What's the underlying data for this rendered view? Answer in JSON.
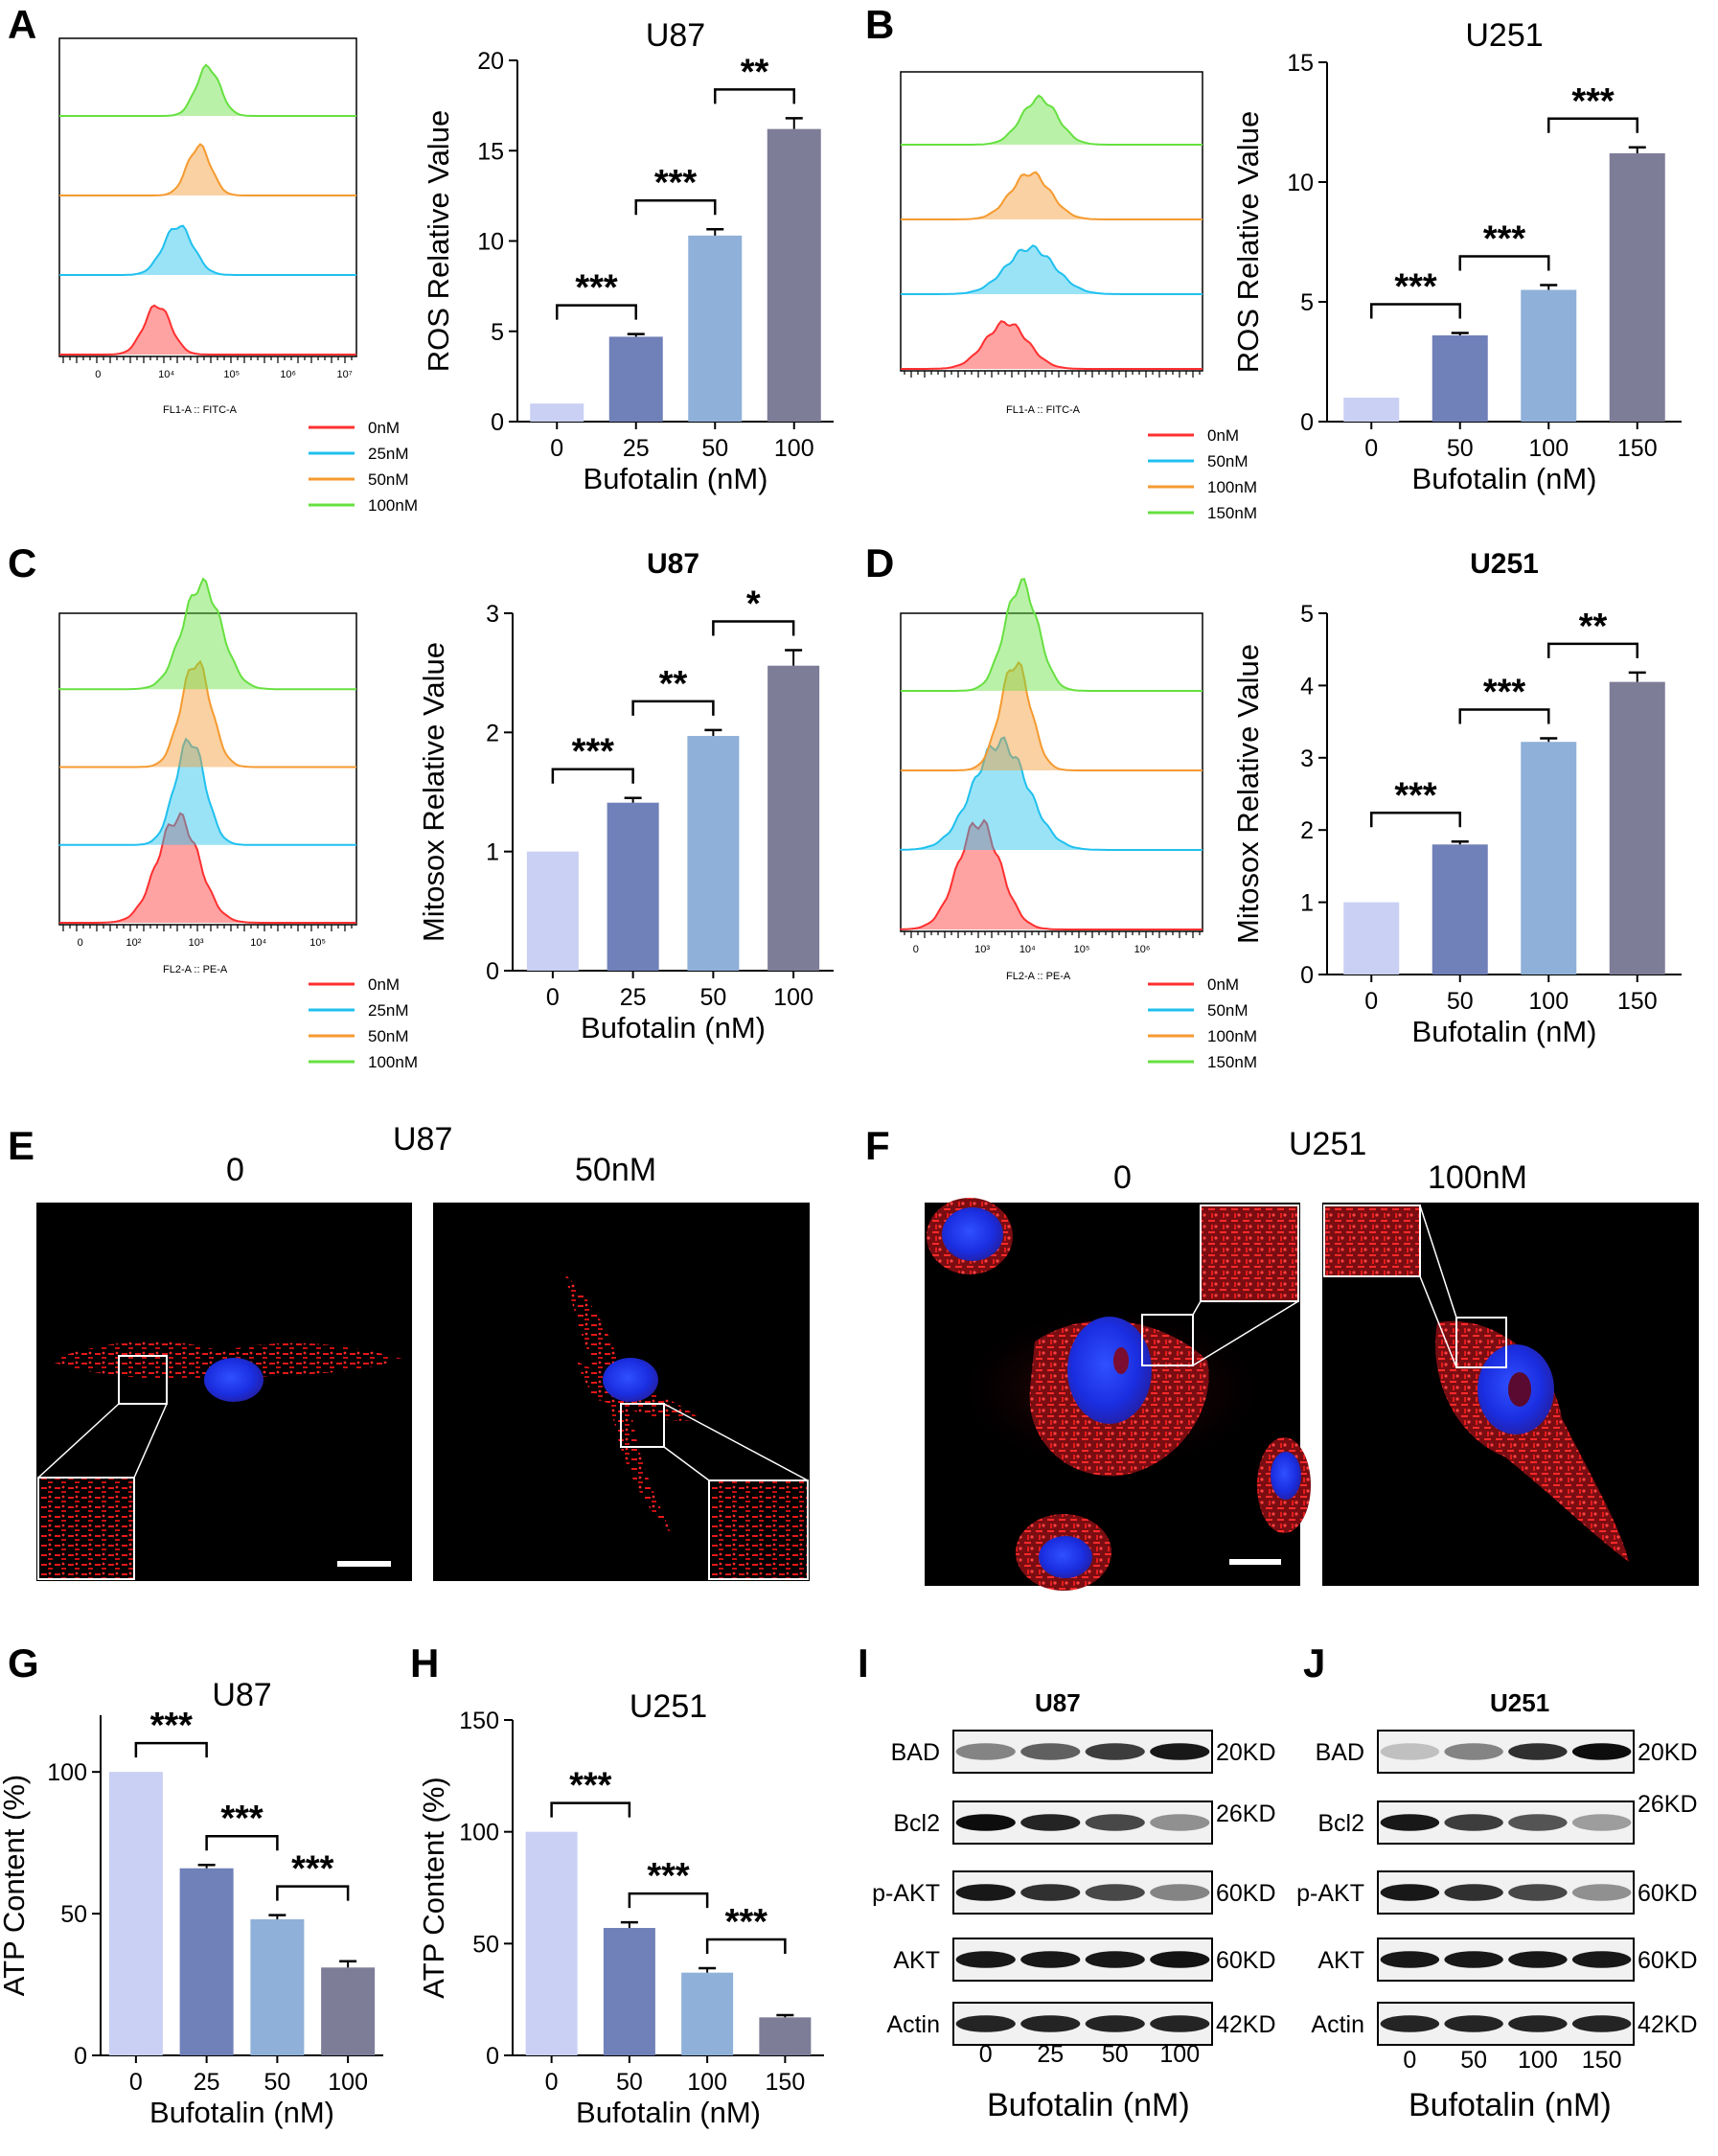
{
  "panels": {
    "A": {
      "label": "A",
      "title": "U87",
      "flow_axis": "FL1-A :: FITC-A",
      "legend": [
        "0nM",
        "25nM",
        "50nM",
        "100nM"
      ]
    },
    "B": {
      "label": "B",
      "title": "U251",
      "flow_axis": "FL1-A :: FITC-A",
      "legend": [
        "0nM",
        "50nM",
        "100nM",
        "150nM"
      ]
    },
    "C": {
      "label": "C",
      "title": "U87",
      "flow_axis": "FL2-A :: PE-A",
      "legend": [
        "0nM",
        "25nM",
        "50nM",
        "100nM"
      ]
    },
    "D": {
      "label": "D",
      "title": "U251",
      "flow_axis": "FL2-A :: PE-A",
      "legend": [
        "0nM",
        "50nM",
        "100nM",
        "150nM"
      ]
    },
    "E": {
      "label": "E",
      "cell": "U87",
      "cond_left": "0",
      "cond_right": "50nM"
    },
    "F": {
      "label": "F",
      "cell": "U251",
      "cond_left": "0",
      "cond_right": "100nM"
    },
    "G": {
      "label": "G",
      "title": "U87"
    },
    "H": {
      "label": "H",
      "title": "U251"
    },
    "I": {
      "label": "I",
      "title": "U87",
      "proteins": [
        "BAD",
        "Bcl2",
        "p-AKT",
        "AKT",
        "Actin"
      ],
      "sizes": [
        "20KD",
        "26KD",
        "60KD",
        "60KD",
        "42KD"
      ],
      "lanes": [
        "0",
        "25",
        "50",
        "100"
      ],
      "xlabel": "Bufotalin (nM)"
    },
    "J": {
      "label": "J",
      "title": "U251",
      "proteins": [
        "BAD",
        "Bcl2",
        "p-AKT",
        "AKT",
        "Actin"
      ],
      "sizes": [
        "20KD",
        "26KD",
        "60KD",
        "60KD",
        "42KD"
      ],
      "lanes": [
        "0",
        "50",
        "100",
        "150"
      ],
      "xlabel": "Bufotalin (nM)"
    }
  },
  "colors": {
    "bar": [
      "#c9d0f4",
      "#7080b8",
      "#8fb0d8",
      "#7e7d98"
    ],
    "hist": [
      "#ff3030",
      "#20c0ee",
      "#f59a30",
      "#66e040"
    ]
  },
  "chart_data": [
    {
      "id": "A",
      "type": "bar",
      "title": "U87",
      "categories": [
        "0",
        "25",
        "50",
        "100"
      ],
      "values": [
        1.0,
        4.7,
        10.3,
        16.2
      ],
      "errors": [
        0,
        0.15,
        0.35,
        0.6
      ],
      "xlabel": "Bufotalin (nM)",
      "ylabel": "ROS Relative Value",
      "ylim": [
        0,
        20
      ],
      "yticks": [
        0,
        5,
        10,
        15,
        20
      ],
      "sig": [
        {
          "a": 0,
          "b": 1,
          "label": "***"
        },
        {
          "a": 1,
          "b": 2,
          "label": "***"
        },
        {
          "a": 2,
          "b": 3,
          "label": "**"
        }
      ]
    },
    {
      "id": "B",
      "type": "bar",
      "title": "U251",
      "categories": [
        "0",
        "50",
        "100",
        "150"
      ],
      "values": [
        1.0,
        3.6,
        5.5,
        11.2
      ],
      "errors": [
        0,
        0.1,
        0.2,
        0.25
      ],
      "xlabel": "Bufotalin (nM)",
      "ylabel": "ROS Relative Value",
      "ylim": [
        0,
        15
      ],
      "yticks": [
        0,
        5,
        10,
        15
      ],
      "sig": [
        {
          "a": 0,
          "b": 1,
          "label": "***"
        },
        {
          "a": 1,
          "b": 2,
          "label": "***"
        },
        {
          "a": 2,
          "b": 3,
          "label": "***"
        }
      ]
    },
    {
      "id": "C",
      "type": "bar",
      "title": "U87",
      "categories": [
        "0",
        "25",
        "50",
        "100"
      ],
      "values": [
        1.0,
        1.41,
        1.97,
        2.56
      ],
      "errors": [
        0,
        0.04,
        0.05,
        0.13
      ],
      "xlabel": "Bufotalin (nM)",
      "ylabel": "Mitosox Relative Value",
      "ylim": [
        0,
        3
      ],
      "yticks": [
        0,
        1,
        2,
        3
      ],
      "sig": [
        {
          "a": 0,
          "b": 1,
          "label": "***"
        },
        {
          "a": 1,
          "b": 2,
          "label": "**"
        },
        {
          "a": 2,
          "b": 3,
          "label": "*"
        }
      ]
    },
    {
      "id": "D",
      "type": "bar",
      "title": "U251",
      "categories": [
        "0",
        "50",
        "100",
        "150"
      ],
      "values": [
        1.0,
        1.8,
        3.22,
        4.05
      ],
      "errors": [
        0,
        0.04,
        0.05,
        0.13
      ],
      "xlabel": "Bufotalin (nM)",
      "ylabel": "Mitosox Relative Value",
      "ylim": [
        0,
        5
      ],
      "yticks": [
        0,
        1,
        2,
        3,
        4,
        5
      ],
      "sig": [
        {
          "a": 0,
          "b": 1,
          "label": "***"
        },
        {
          "a": 1,
          "b": 2,
          "label": "***"
        },
        {
          "a": 2,
          "b": 3,
          "label": "**"
        }
      ]
    },
    {
      "id": "G",
      "type": "bar",
      "title": "U87",
      "categories": [
        "0",
        "25",
        "50",
        "100"
      ],
      "values": [
        100,
        66,
        48,
        31
      ],
      "errors": [
        0,
        1.2,
        1.5,
        2.2
      ],
      "xlabel": "Bufotalin (nM)",
      "ylabel": "ATP Content (%)",
      "ylim": [
        0,
        120
      ],
      "yticks": [
        0,
        50,
        100
      ],
      "sig": [
        {
          "a": 0,
          "b": 1,
          "label": "***"
        },
        {
          "a": 1,
          "b": 2,
          "label": "***"
        },
        {
          "a": 2,
          "b": 3,
          "label": "***"
        }
      ]
    },
    {
      "id": "H",
      "type": "bar",
      "title": "U251",
      "categories": [
        "0",
        "50",
        "100",
        "150"
      ],
      "values": [
        100,
        57,
        37,
        17
      ],
      "errors": [
        0,
        2.5,
        2,
        1
      ],
      "xlabel": "Bufotalin (nM)",
      "ylabel": "ATP Content (%)",
      "ylim": [
        0,
        150
      ],
      "yticks": [
        0,
        50,
        100,
        150
      ],
      "sig": [
        {
          "a": 0,
          "b": 1,
          "label": "***"
        },
        {
          "a": 1,
          "b": 2,
          "label": "***"
        },
        {
          "a": 2,
          "b": 3,
          "label": "***"
        }
      ]
    }
  ],
  "flow_ticks": {
    "A": [
      "0",
      "10",
      "10",
      "10",
      "10"
    ],
    "C": [
      "0",
      "10",
      "10",
      "10",
      "10"
    ]
  }
}
